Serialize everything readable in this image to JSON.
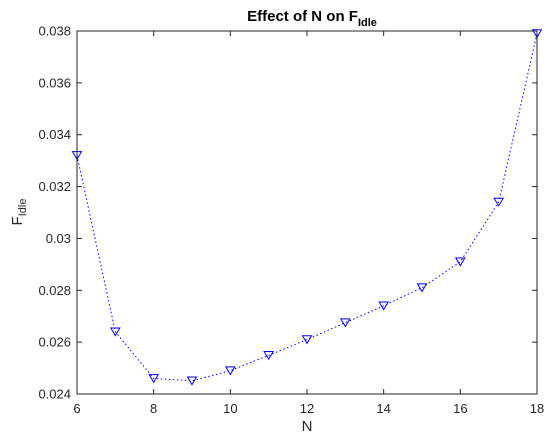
{
  "chart_data": {
    "type": "line",
    "title": {
      "main": "Effect of N on F",
      "sub": "Idle"
    },
    "xlabel": "N",
    "ylabel": {
      "main": "F",
      "sub": "Idle"
    },
    "xlim": [
      6,
      18
    ],
    "ylim": [
      0.024,
      0.038
    ],
    "xticks": [
      6,
      8,
      10,
      12,
      14,
      16,
      18
    ],
    "xtick_labels": [
      "6",
      "8",
      "10",
      "12",
      "14",
      "16",
      "18"
    ],
    "yticks": [
      0.024,
      0.026,
      0.028,
      0.03,
      0.032,
      0.034,
      0.036,
      0.038
    ],
    "ytick_labels": [
      "0.024",
      "0.026",
      "0.028",
      "0.03",
      "0.032",
      "0.034",
      "0.036",
      "0.038"
    ],
    "grid": false,
    "line_style": "dotted",
    "marker": "triangle-down",
    "series": [
      {
        "color": "#0000ff",
        "x": [
          6,
          7,
          8,
          9,
          10,
          11,
          12,
          13,
          14,
          15,
          16,
          17,
          18
        ],
        "y": [
          0.0332,
          0.0264,
          0.0246,
          0.02451,
          0.0249,
          0.02549,
          0.0261,
          0.02675,
          0.0274,
          0.0281,
          0.0291,
          0.0314,
          0.0379
        ]
      }
    ]
  }
}
